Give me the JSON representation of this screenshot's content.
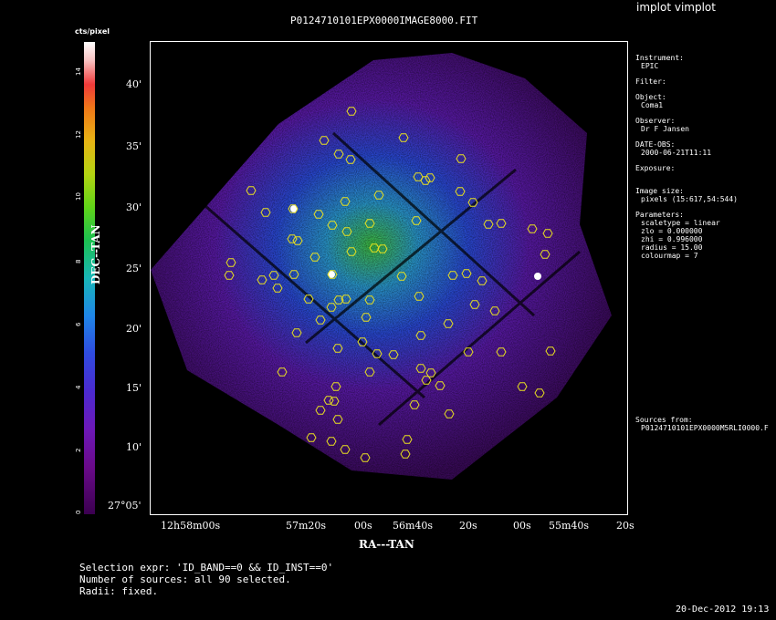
{
  "window": {
    "title": "implot vimplot"
  },
  "plot": {
    "title": "P0124710101EPX0000IMAGE8000.FIT"
  },
  "colorbar": {
    "label": "cts/pixel",
    "ticks": [
      "0",
      "2",
      "4",
      "6",
      "8",
      "10",
      "12",
      "14"
    ]
  },
  "axes": {
    "ylabel": "DEC--TAN",
    "xlabel": "RA---TAN",
    "yticks": [
      "40'",
      "35'",
      "30'",
      "25'",
      "20'",
      "15'",
      "10'",
      "27°05'"
    ],
    "xticks": [
      "12h58m00s",
      "57m20s",
      "00s",
      "56m40s",
      "20s",
      "00s",
      "55m40s",
      "20s"
    ]
  },
  "info": {
    "instrument_label": "Instrument:",
    "instrument_value": "EPIC",
    "filter_label": "Filter:",
    "object_label": "Object:",
    "object_value": "Coma1",
    "observer_label": "Observer:",
    "observer_value": "Dr F Jansen",
    "date_obs_label": "DATE-OBS:",
    "date_obs_value": "2000-06-21T11:11",
    "exposure_label": "Exposure:",
    "image_size_label": "Image size:",
    "image_size_value": "pixels (15:617,54:544)",
    "parameters_label": "Parameters:",
    "params": [
      "scaletype = linear",
      "zlo = 0.000000",
      "zhi = 0.996000",
      "radius =  15.00",
      "colourmap =    7"
    ],
    "sources_label": "Sources from:",
    "sources_value": "P0124710101EPX0000M5RLI0000.F"
  },
  "footer": {
    "selection": "Selection expr: 'ID_BAND==0 && ID_INST==0'",
    "number": "Number of sources: all 90 selected.",
    "radii": "Radii: fixed."
  },
  "timestamp": "20-Dec-2012 19:13",
  "colors": {
    "source_marker": "#e8e020",
    "background": "#000000"
  }
}
